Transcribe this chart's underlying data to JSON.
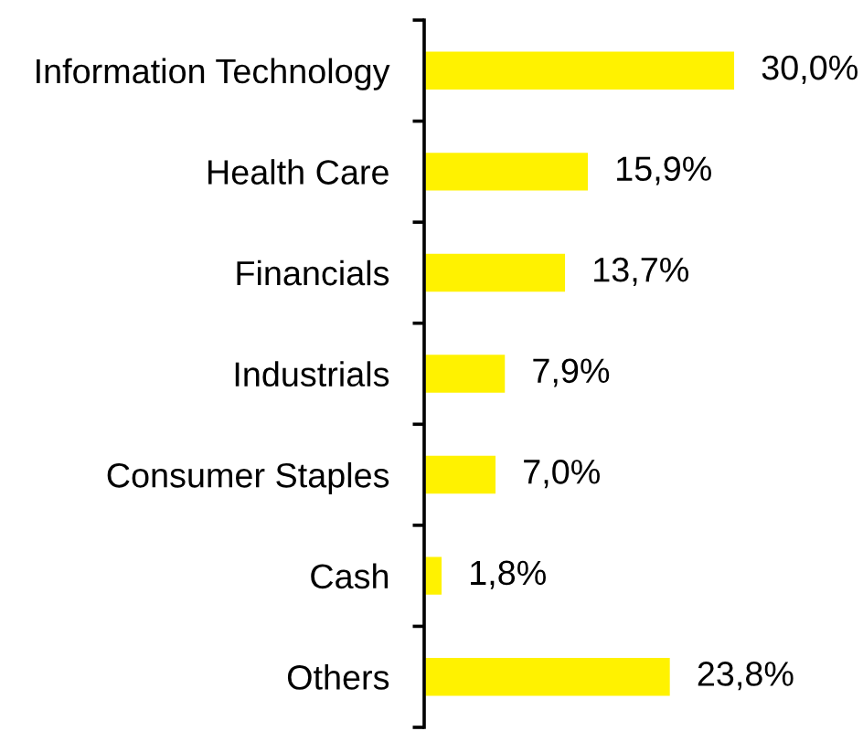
{
  "chart_data": {
    "type": "bar",
    "orientation": "horizontal",
    "categories": [
      "Information Technology",
      "Health Care",
      "Financials",
      "Industrials",
      "Consumer Staples",
      "Cash",
      "Others"
    ],
    "values": [
      30.0,
      15.9,
      13.7,
      7.9,
      7.0,
      1.8,
      23.8
    ],
    "value_labels": [
      "30,0%",
      "15,9%",
      "13,7%",
      "7,9%",
      "7,0%",
      "1,8%",
      "23,8%"
    ],
    "color": "#fff200"
  }
}
